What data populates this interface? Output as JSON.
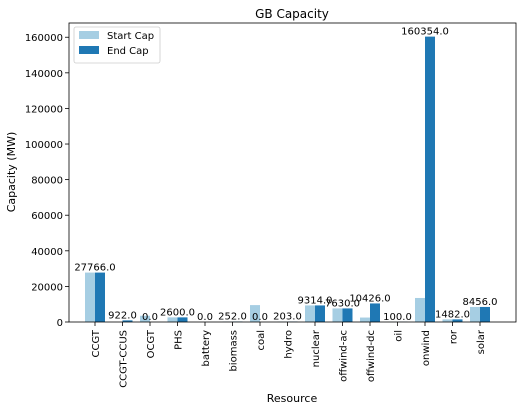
{
  "chart_data": {
    "type": "bar",
    "title": "GB Capacity",
    "xlabel": "Resource",
    "ylabel": "Capacity (MW)",
    "ylim": [
      0,
      168000
    ],
    "yticks": [
      0,
      20000,
      40000,
      60000,
      80000,
      100000,
      120000,
      140000,
      160000
    ],
    "grid": false,
    "legend_position": "top-left",
    "categories": [
      "CCGT",
      "CCGT-CCUS",
      "OCGT",
      "PHS",
      "battery",
      "biomass",
      "coal",
      "hydro",
      "nuclear",
      "offwind-ac",
      "offwind-dc",
      "oil",
      "onwind",
      "ror",
      "solar"
    ],
    "series": [
      {
        "name": "Start Cap",
        "color": "#a6cee3",
        "values": [
          27766,
          0,
          3500,
          2600,
          0,
          252,
          9500,
          203,
          9314,
          7630,
          2500,
          100,
          13500,
          1482,
          8456
        ]
      },
      {
        "name": "End Cap",
        "color": "#1f78b4",
        "values": [
          27766,
          922,
          0.0,
          2600,
          0,
          252,
          0.0,
          203,
          9314,
          7630,
          10426,
          100,
          160354,
          1482,
          8456
        ]
      }
    ],
    "data_labels": [
      "27766.0",
      "922.0",
      "0.0",
      "2600.0",
      "0.0",
      "252.0",
      "0.0",
      "203.0",
      "9314.0",
      "7630.0",
      "10426.0",
      "100.0",
      "160354.0",
      "1482.0",
      "8456.0"
    ]
  }
}
